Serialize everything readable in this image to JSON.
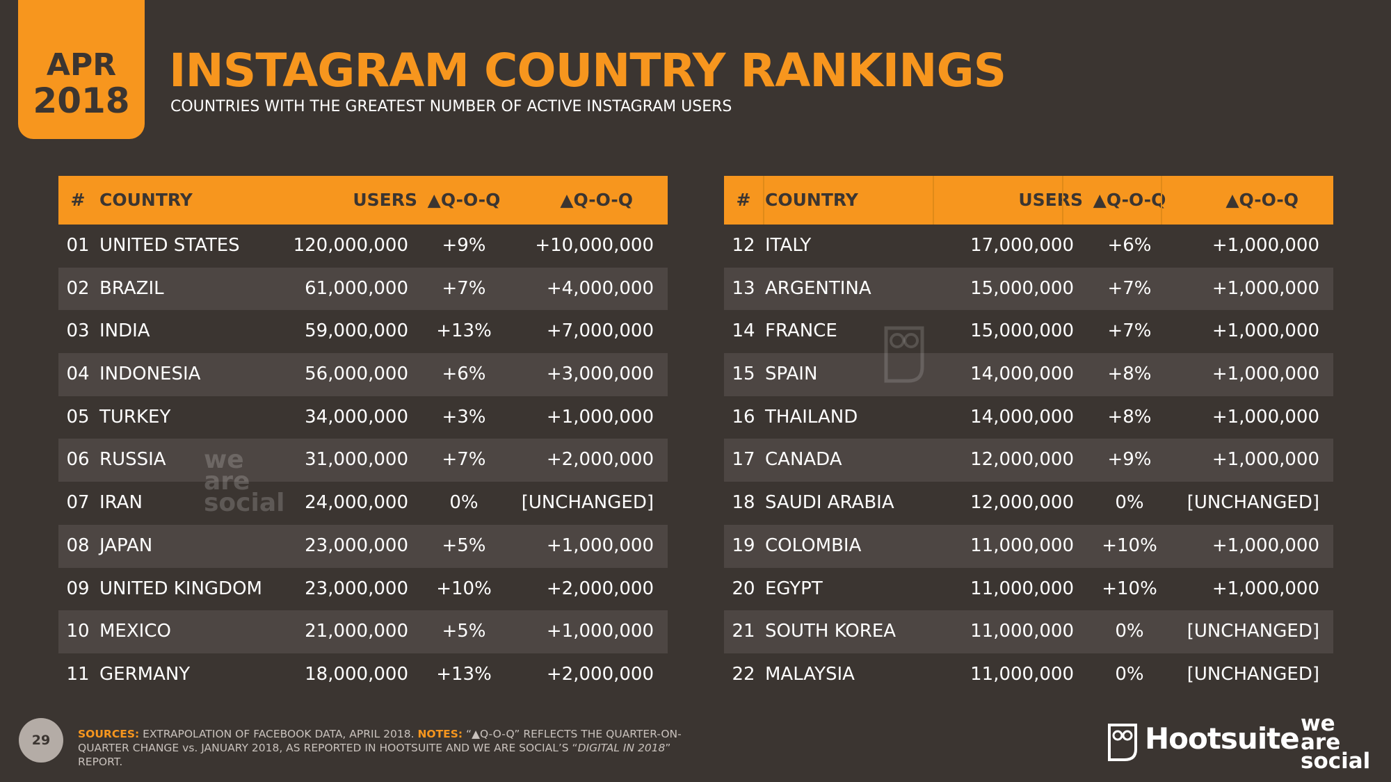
{
  "badge": {
    "month": "APR",
    "year": "2018"
  },
  "header": {
    "title": "INSTAGRAM COUNTRY RANKINGS",
    "subtitle": "COUNTRIES WITH THE GREATEST NUMBER OF ACTIVE INSTAGRAM USERS"
  },
  "tables": [
    {
      "columns": [
        "#",
        "COUNTRY",
        "USERS",
        "▲Q-O-Q",
        "▲Q-O-Q"
      ],
      "rows": [
        [
          "01",
          "UNITED STATES",
          "120,000,000",
          "+9%",
          "+10,000,000"
        ],
        [
          "02",
          "BRAZIL",
          "61,000,000",
          "+7%",
          "+4,000,000"
        ],
        [
          "03",
          "INDIA",
          "59,000,000",
          "+13%",
          "+7,000,000"
        ],
        [
          "04",
          "INDONESIA",
          "56,000,000",
          "+6%",
          "+3,000,000"
        ],
        [
          "05",
          "TURKEY",
          "34,000,000",
          "+3%",
          "+1,000,000"
        ],
        [
          "06",
          "RUSSIA",
          "31,000,000",
          "+7%",
          "+2,000,000"
        ],
        [
          "07",
          "IRAN",
          "24,000,000",
          "0%",
          "[UNCHANGED]"
        ],
        [
          "08",
          "JAPAN",
          "23,000,000",
          "+5%",
          "+1,000,000"
        ],
        [
          "09",
          "UNITED KINGDOM",
          "23,000,000",
          "+10%",
          "+2,000,000"
        ],
        [
          "10",
          "MEXICO",
          "21,000,000",
          "+5%",
          "+1,000,000"
        ],
        [
          "11",
          "GERMANY",
          "18,000,000",
          "+13%",
          "+2,000,000"
        ]
      ]
    },
    {
      "columns": [
        "#",
        "COUNTRY",
        "USERS",
        "▲Q-O-Q",
        "▲Q-O-Q"
      ],
      "rows": [
        [
          "12",
          "ITALY",
          "17,000,000",
          "+6%",
          "+1,000,000"
        ],
        [
          "13",
          "ARGENTINA",
          "15,000,000",
          "+7%",
          "+1,000,000"
        ],
        [
          "14",
          "FRANCE",
          "15,000,000",
          "+7%",
          "+1,000,000"
        ],
        [
          "15",
          "SPAIN",
          "14,000,000",
          "+8%",
          "+1,000,000"
        ],
        [
          "16",
          "THAILAND",
          "14,000,000",
          "+8%",
          "+1,000,000"
        ],
        [
          "17",
          "CANADA",
          "12,000,000",
          "+9%",
          "+1,000,000"
        ],
        [
          "18",
          "SAUDI ARABIA",
          "12,000,000",
          "0%",
          "[UNCHANGED]"
        ],
        [
          "19",
          "COLOMBIA",
          "11,000,000",
          "+10%",
          "+1,000,000"
        ],
        [
          "20",
          "EGYPT",
          "11,000,000",
          "+10%",
          "+1,000,000"
        ],
        [
          "21",
          "SOUTH KOREA",
          "11,000,000",
          "0%",
          "[UNCHANGED]"
        ],
        [
          "22",
          "MALAYSIA",
          "11,000,000",
          "0%",
          "[UNCHANGED]"
        ]
      ]
    }
  ],
  "watermark": "we are social",
  "footer": {
    "page": "29",
    "sources_label": "SOURCES:",
    "sources": " EXTRAPOLATION OF FACEBOOK DATA, APRIL 2018. ",
    "notes_label": "NOTES:",
    "notes": " “▲Q-O-Q” REFLECTS THE QUARTER-ON-QUARTER CHANGE vs. JANUARY 2018, AS REPORTED IN HOOTSUITE AND WE ARE SOCIAL’S “",
    "notes_italic": "DIGITAL IN 2018",
    "notes_end": "” REPORT.",
    "brands": [
      "Hootsuite",
      "we are social"
    ]
  }
}
